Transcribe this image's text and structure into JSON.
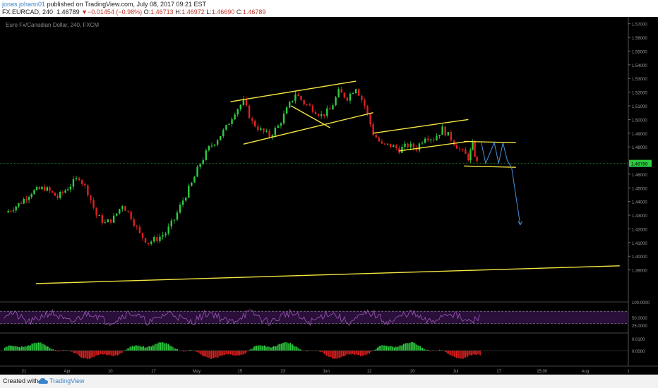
{
  "header": {
    "user": "jonas.johann01",
    "published": " published on TradingView.com, July 08, 2017 09:21 EST",
    "symbol": "FX:EURCAD, 240",
    "last": "1.46789",
    "arrow": "▼",
    "change": "−0.01454 (−0.98%)",
    "o_label": "O:",
    "o_value": "1.46713",
    "h_label": "H:",
    "h_value": "1.46972",
    "l_label": "L:",
    "l_value": "1.46690",
    "c_label": "C:",
    "c_value": "1.46789"
  },
  "legend": {
    "title": "Euro Fx/Canadian Dollar, 240, FXCM"
  },
  "footer": {
    "created": "Created with",
    "brand": "TradingView"
  },
  "colors": {
    "background": "#000000",
    "up": "#2ecc40",
    "down": "#e02020",
    "trendline": "#f5e642",
    "projection": "#4a90d9",
    "rsi": "#9b59b6",
    "price_tag": "#2ecc40"
  },
  "chart_data": {
    "type": "candlestick",
    "symbol": "FX:EURCAD",
    "interval": "240",
    "current_price": "1.46789",
    "ylim": [
      1.38,
      1.575
    ],
    "price_ticks": [
      "1.57000",
      "1.56000",
      "1.55000",
      "1.54000",
      "1.53000",
      "1.52000",
      "1.51000",
      "1.50000",
      "1.49000",
      "1.48000",
      "1.46000",
      "1.45000",
      "1.44000",
      "1.43000",
      "1.42000",
      "1.41000",
      "1.40000",
      "1.39000"
    ],
    "time_ticks": [
      "21",
      "Apr",
      "10",
      "17",
      "May",
      "15",
      "23",
      "Jun",
      "12",
      "20",
      "Jul",
      "17",
      "15:00",
      "Aug",
      "1"
    ],
    "candle_path": [
      [
        "Mar 21",
        1.432
      ],
      [
        "Mar 24",
        1.438
      ],
      [
        "Mar 27",
        1.447
      ],
      [
        "Mar 30",
        1.45
      ],
      [
        "Apr 02",
        1.443
      ],
      [
        "Apr 05",
        1.452
      ],
      [
        "Apr 07",
        1.458
      ],
      [
        "Apr 09",
        1.447
      ],
      [
        "Apr 11",
        1.43
      ],
      [
        "Apr 13",
        1.424
      ],
      [
        "Apr 15",
        1.428
      ],
      [
        "Apr 17",
        1.438
      ],
      [
        "Apr 19",
        1.429
      ],
      [
        "Apr 21",
        1.416
      ],
      [
        "Apr 23",
        1.41
      ],
      [
        "Apr 25",
        1.413
      ],
      [
        "Apr 27",
        1.417
      ],
      [
        "Apr 29",
        1.427
      ],
      [
        "May 01",
        1.441
      ],
      [
        "May 03",
        1.453
      ],
      [
        "May 05",
        1.468
      ],
      [
        "May 07",
        1.479
      ],
      [
        "May 09",
        1.486
      ],
      [
        "May 11",
        1.494
      ],
      [
        "May 13",
        1.506
      ],
      [
        "May 15",
        1.513
      ],
      [
        "May 17",
        1.498
      ],
      [
        "May 19",
        1.492
      ],
      [
        "May 21",
        1.488
      ],
      [
        "May 23",
        1.495
      ],
      [
        "May 25",
        1.507
      ],
      [
        "May 27",
        1.519
      ],
      [
        "May 29",
        1.512
      ],
      [
        "May 31",
        1.508
      ],
      [
        "Jun 02",
        1.503
      ],
      [
        "Jun 04",
        1.507
      ],
      [
        "Jun 06",
        1.52
      ],
      [
        "Jun 08",
        1.516
      ],
      [
        "Jun 10",
        1.524
      ],
      [
        "Jun 12",
        1.51
      ],
      [
        "Jun 14",
        1.49
      ],
      [
        "Jun 16",
        1.481
      ],
      [
        "Jun 18",
        1.481
      ],
      [
        "Jun 20",
        1.478
      ],
      [
        "Jun 22",
        1.481
      ],
      [
        "Jun 24",
        1.479
      ],
      [
        "Jun 26",
        1.488
      ],
      [
        "Jun 28",
        1.486
      ],
      [
        "Jun 30",
        1.493
      ],
      [
        "Jul 02",
        1.486
      ],
      [
        "Jul 04",
        1.478
      ],
      [
        "Jul 06",
        1.472
      ],
      [
        "Jul 07",
        1.481
      ],
      [
        "Jul 08",
        1.468
      ]
    ],
    "trendlines": [
      {
        "from": [
          "May 12",
          1.513
        ],
        "to": [
          "Jun 10",
          1.528
        ]
      },
      {
        "from": [
          "May 15",
          1.482
        ],
        "to": [
          "Jun 14",
          1.505
        ]
      },
      {
        "from": [
          "May 26",
          1.51
        ],
        "to": [
          "Jun 04",
          1.494
        ]
      },
      {
        "from": [
          "Jun 14",
          1.49
        ],
        "to": [
          "Jul 06",
          1.5
        ]
      },
      {
        "from": [
          "Jun 20",
          1.477
        ],
        "to": [
          "Jul 06",
          1.484
        ]
      },
      {
        "from": [
          "Jul 05",
          1.484
        ],
        "to": [
          "Jul 17",
          1.483
        ]
      },
      {
        "from": [
          "Jul 05",
          1.466
        ],
        "to": [
          "Jul 17",
          1.465
        ]
      },
      {
        "from": [
          "Mar 28",
          1.38
        ],
        "to": [
          "Aug 10",
          1.393
        ]
      }
    ],
    "projection": [
      [
        "Jul 09",
        1.483
      ],
      [
        "Jul 10",
        1.468
      ],
      [
        "Jul 12",
        1.483
      ],
      [
        "Jul 13",
        1.468
      ],
      [
        "Jul 14",
        1.483
      ],
      [
        "Jul 15",
        1.47
      ],
      [
        "Jul 16",
        1.465
      ],
      [
        "Jul 18",
        1.423
      ]
    ],
    "rsi": {
      "levels": [
        "100.0000",
        "50.0000",
        "25.0000"
      ],
      "upper": 70,
      "lower": 30
    },
    "macd": {
      "levels": [
        "0.0100",
        "0.0000"
      ]
    }
  }
}
